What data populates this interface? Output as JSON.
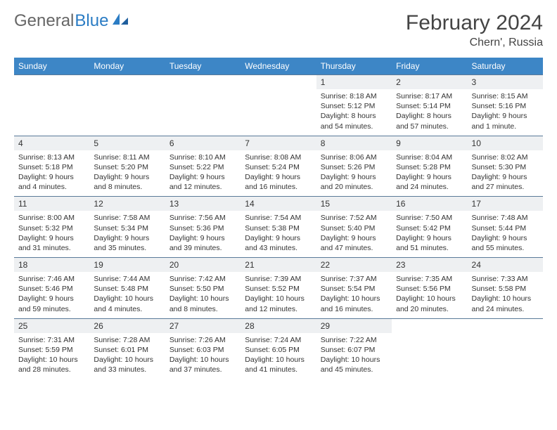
{
  "logo": {
    "general": "General",
    "blue": "Blue"
  },
  "title": "February 2024",
  "location": "Chern', Russia",
  "weekdays": [
    "Sunday",
    "Monday",
    "Tuesday",
    "Wednesday",
    "Thursday",
    "Friday",
    "Saturday"
  ],
  "colors": {
    "header_bg": "#3d86c6",
    "daynum_bg": "#eef0f2",
    "border": "#5a7a99"
  },
  "weeks": [
    [
      null,
      null,
      null,
      null,
      {
        "n": "1",
        "sr": "8:18 AM",
        "ss": "5:12 PM",
        "dl": "8 hours and 54 minutes."
      },
      {
        "n": "2",
        "sr": "8:17 AM",
        "ss": "5:14 PM",
        "dl": "8 hours and 57 minutes."
      },
      {
        "n": "3",
        "sr": "8:15 AM",
        "ss": "5:16 PM",
        "dl": "9 hours and 1 minute."
      }
    ],
    [
      {
        "n": "4",
        "sr": "8:13 AM",
        "ss": "5:18 PM",
        "dl": "9 hours and 4 minutes."
      },
      {
        "n": "5",
        "sr": "8:11 AM",
        "ss": "5:20 PM",
        "dl": "9 hours and 8 minutes."
      },
      {
        "n": "6",
        "sr": "8:10 AM",
        "ss": "5:22 PM",
        "dl": "9 hours and 12 minutes."
      },
      {
        "n": "7",
        "sr": "8:08 AM",
        "ss": "5:24 PM",
        "dl": "9 hours and 16 minutes."
      },
      {
        "n": "8",
        "sr": "8:06 AM",
        "ss": "5:26 PM",
        "dl": "9 hours and 20 minutes."
      },
      {
        "n": "9",
        "sr": "8:04 AM",
        "ss": "5:28 PM",
        "dl": "9 hours and 24 minutes."
      },
      {
        "n": "10",
        "sr": "8:02 AM",
        "ss": "5:30 PM",
        "dl": "9 hours and 27 minutes."
      }
    ],
    [
      {
        "n": "11",
        "sr": "8:00 AM",
        "ss": "5:32 PM",
        "dl": "9 hours and 31 minutes."
      },
      {
        "n": "12",
        "sr": "7:58 AM",
        "ss": "5:34 PM",
        "dl": "9 hours and 35 minutes."
      },
      {
        "n": "13",
        "sr": "7:56 AM",
        "ss": "5:36 PM",
        "dl": "9 hours and 39 minutes."
      },
      {
        "n": "14",
        "sr": "7:54 AM",
        "ss": "5:38 PM",
        "dl": "9 hours and 43 minutes."
      },
      {
        "n": "15",
        "sr": "7:52 AM",
        "ss": "5:40 PM",
        "dl": "9 hours and 47 minutes."
      },
      {
        "n": "16",
        "sr": "7:50 AM",
        "ss": "5:42 PM",
        "dl": "9 hours and 51 minutes."
      },
      {
        "n": "17",
        "sr": "7:48 AM",
        "ss": "5:44 PM",
        "dl": "9 hours and 55 minutes."
      }
    ],
    [
      {
        "n": "18",
        "sr": "7:46 AM",
        "ss": "5:46 PM",
        "dl": "9 hours and 59 minutes."
      },
      {
        "n": "19",
        "sr": "7:44 AM",
        "ss": "5:48 PM",
        "dl": "10 hours and 4 minutes."
      },
      {
        "n": "20",
        "sr": "7:42 AM",
        "ss": "5:50 PM",
        "dl": "10 hours and 8 minutes."
      },
      {
        "n": "21",
        "sr": "7:39 AM",
        "ss": "5:52 PM",
        "dl": "10 hours and 12 minutes."
      },
      {
        "n": "22",
        "sr": "7:37 AM",
        "ss": "5:54 PM",
        "dl": "10 hours and 16 minutes."
      },
      {
        "n": "23",
        "sr": "7:35 AM",
        "ss": "5:56 PM",
        "dl": "10 hours and 20 minutes."
      },
      {
        "n": "24",
        "sr": "7:33 AM",
        "ss": "5:58 PM",
        "dl": "10 hours and 24 minutes."
      }
    ],
    [
      {
        "n": "25",
        "sr": "7:31 AM",
        "ss": "5:59 PM",
        "dl": "10 hours and 28 minutes."
      },
      {
        "n": "26",
        "sr": "7:28 AM",
        "ss": "6:01 PM",
        "dl": "10 hours and 33 minutes."
      },
      {
        "n": "27",
        "sr": "7:26 AM",
        "ss": "6:03 PM",
        "dl": "10 hours and 37 minutes."
      },
      {
        "n": "28",
        "sr": "7:24 AM",
        "ss": "6:05 PM",
        "dl": "10 hours and 41 minutes."
      },
      {
        "n": "29",
        "sr": "7:22 AM",
        "ss": "6:07 PM",
        "dl": "10 hours and 45 minutes."
      },
      null,
      null
    ]
  ],
  "labels": {
    "sunrise": "Sunrise: ",
    "sunset": "Sunset: ",
    "daylight": "Daylight: "
  }
}
